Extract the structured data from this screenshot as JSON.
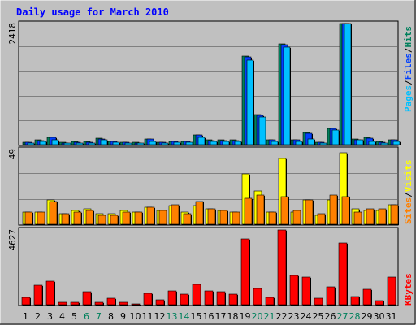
{
  "title": "Daily usage for March 2010",
  "colors": {
    "hits": "#00805c",
    "files": "#0040ff",
    "pages": "#00c0ff",
    "visits": "#ffff00",
    "sites": "#ff8000",
    "kbytes": "#ff0000",
    "weekday": "#000000",
    "weekend": "#00805c"
  },
  "legend": {
    "top": [
      {
        "text": "Pages",
        "color": "#00c0ff"
      },
      {
        "text": "/",
        "color": "#000000"
      },
      {
        "text": "Files",
        "color": "#0040ff"
      },
      {
        "text": "/",
        "color": "#000000"
      },
      {
        "text": "Hits",
        "color": "#00805c"
      }
    ],
    "middle": [
      {
        "text": "Sites",
        "color": "#ff8000"
      },
      {
        "text": "/",
        "color": "#000000"
      },
      {
        "text": "Visits",
        "color": "#ffff00"
      }
    ],
    "bottom": [
      {
        "text": "KBytes",
        "color": "#ff0000"
      }
    ]
  },
  "chart_data": [
    {
      "type": "bar",
      "panel": "hits-files-pages",
      "ymax_label": "2418",
      "ylim": [
        0,
        2418
      ],
      "categories": [
        "1",
        "2",
        "3",
        "4",
        "5",
        "6",
        "7",
        "8",
        "9",
        "10",
        "11",
        "12",
        "13",
        "14",
        "15",
        "16",
        "17",
        "18",
        "19",
        "20",
        "21",
        "22",
        "23",
        "24",
        "25",
        "26",
        "27",
        "28",
        "29",
        "30",
        "31"
      ],
      "weekend_days": [
        "6",
        "7",
        "13",
        "14",
        "20",
        "21",
        "27",
        "28"
      ],
      "series": [
        {
          "name": "Hits",
          "values": [
            50,
            90,
            145,
            45,
            60,
            60,
            130,
            70,
            50,
            45,
            115,
            55,
            65,
            65,
            200,
            90,
            90,
            90,
            1770,
            600,
            105,
            2010,
            100,
            240,
            50,
            330,
            2418,
            110,
            140,
            60,
            95
          ]
        },
        {
          "name": "Files",
          "values": [
            45,
            80,
            140,
            40,
            55,
            55,
            120,
            60,
            45,
            40,
            110,
            50,
            60,
            60,
            190,
            80,
            80,
            80,
            1760,
            590,
            100,
            2000,
            90,
            220,
            45,
            320,
            2418,
            100,
            130,
            55,
            90
          ]
        },
        {
          "name": "Pages",
          "values": [
            30,
            60,
            90,
            30,
            40,
            40,
            90,
            45,
            30,
            30,
            70,
            35,
            45,
            45,
            150,
            60,
            60,
            60,
            1690,
            550,
            70,
            1950,
            70,
            120,
            35,
            290,
            2418,
            90,
            70,
            35,
            60
          ]
        }
      ]
    },
    {
      "type": "bar",
      "panel": "visits-sites",
      "ymax_label": "49",
      "ylim": [
        0,
        49
      ],
      "categories": [
        "1",
        "2",
        "3",
        "4",
        "5",
        "6",
        "7",
        "8",
        "9",
        "10",
        "11",
        "12",
        "13",
        "14",
        "15",
        "16",
        "17",
        "18",
        "19",
        "20",
        "21",
        "22",
        "23",
        "24",
        "25",
        "26",
        "27",
        "28",
        "29",
        "30",
        "31"
      ],
      "weekend_days": [
        "6",
        "7",
        "13",
        "14",
        "20",
        "21",
        "27",
        "28"
      ],
      "series": [
        {
          "name": "Visits",
          "values": [
            8,
            8,
            16,
            7,
            9,
            10,
            7,
            7,
            9,
            8,
            11,
            9,
            12,
            8,
            12,
            10,
            9,
            8,
            33,
            22,
            8,
            43,
            8,
            16,
            6,
            16,
            47,
            10,
            9,
            9,
            13
          ]
        },
        {
          "name": "Sites",
          "values": [
            8,
            8,
            15,
            7,
            8,
            9,
            6,
            6,
            8,
            8,
            11,
            9,
            13,
            7,
            15,
            10,
            9,
            8,
            17,
            19,
            8,
            18,
            9,
            16,
            7,
            19,
            18,
            8,
            10,
            10,
            13
          ]
        }
      ]
    },
    {
      "type": "bar",
      "panel": "kbytes",
      "ymax_label": "4627",
      "ylim": [
        0,
        4627
      ],
      "categories": [
        "1",
        "2",
        "3",
        "4",
        "5",
        "6",
        "7",
        "8",
        "9",
        "10",
        "11",
        "12",
        "13",
        "14",
        "15",
        "16",
        "17",
        "18",
        "19",
        "20",
        "21",
        "22",
        "23",
        "24",
        "25",
        "26",
        "27",
        "28",
        "29",
        "30",
        "31"
      ],
      "weekend_days": [
        "6",
        "7",
        "13",
        "14",
        "20",
        "21",
        "27",
        "28"
      ],
      "series": [
        {
          "name": "KBytes",
          "values": [
            450,
            1230,
            1460,
            140,
            140,
            780,
            140,
            390,
            140,
            70,
            690,
            320,
            880,
            650,
            1250,
            840,
            820,
            650,
            4080,
            990,
            440,
            4627,
            1790,
            1710,
            390,
            1090,
            3820,
            500,
            970,
            240,
            1720
          ]
        }
      ]
    }
  ]
}
